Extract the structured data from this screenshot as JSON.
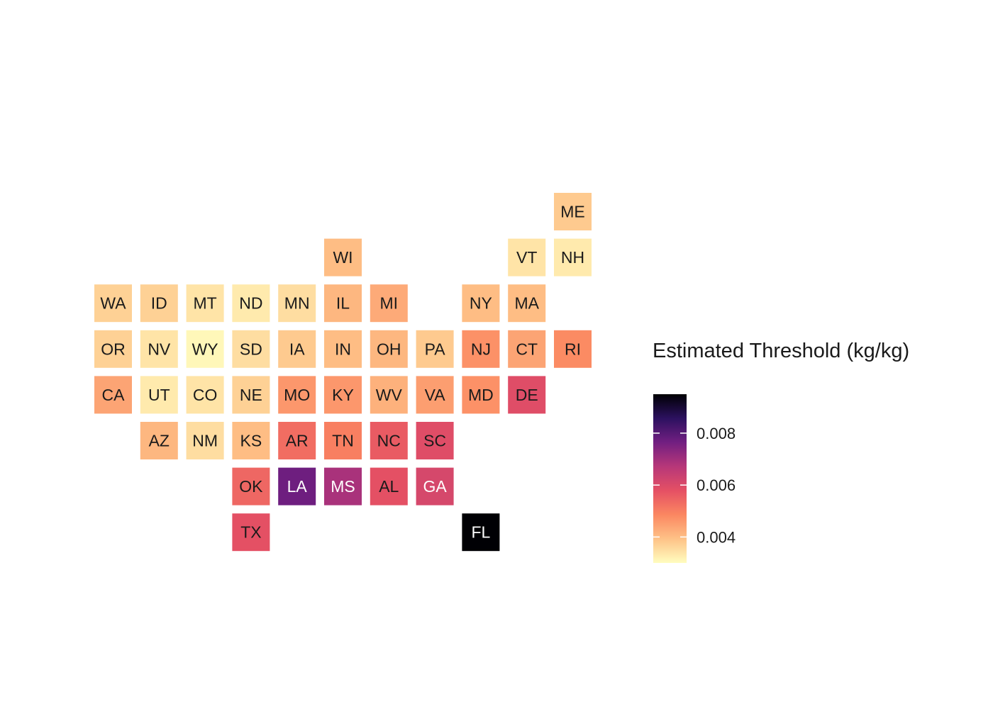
{
  "chart_data": {
    "type": "heatmap",
    "subtype": "us-state-tile-grid",
    "title": "",
    "legend": {
      "title": "Estimated Threshold (kg/kg)",
      "position": "right",
      "range": [
        0.003,
        0.0095
      ],
      "ticks": [
        {
          "value": 0.004,
          "label": "0.004"
        },
        {
          "value": 0.006,
          "label": "0.006"
        },
        {
          "value": 0.008,
          "label": "0.008"
        }
      ],
      "colormap": "magma-reversed",
      "color_stops": [
        "#fffdbf",
        "#fec287",
        "#fb8761",
        "#e55064",
        "#b73779",
        "#721f81",
        "#2c115f",
        "#000004"
      ]
    },
    "tiles": [
      {
        "state": "ME",
        "col": 10,
        "row": 0,
        "value": 0.0038
      },
      {
        "state": "WI",
        "col": 5,
        "row": 1,
        "value": 0.004
      },
      {
        "state": "VT",
        "col": 9,
        "row": 1,
        "value": 0.0034
      },
      {
        "state": "NH",
        "col": 10,
        "row": 1,
        "value": 0.0033
      },
      {
        "state": "WA",
        "col": 0,
        "row": 2,
        "value": 0.0037
      },
      {
        "state": "ID",
        "col": 1,
        "row": 2,
        "value": 0.0037
      },
      {
        "state": "MT",
        "col": 2,
        "row": 2,
        "value": 0.0034
      },
      {
        "state": "ND",
        "col": 3,
        "row": 2,
        "value": 0.0033
      },
      {
        "state": "MN",
        "col": 4,
        "row": 2,
        "value": 0.0035
      },
      {
        "state": "IL",
        "col": 5,
        "row": 2,
        "value": 0.0041
      },
      {
        "state": "MI",
        "col": 6,
        "row": 2,
        "value": 0.0043
      },
      {
        "state": "NY",
        "col": 8,
        "row": 2,
        "value": 0.004
      },
      {
        "state": "MA",
        "col": 9,
        "row": 2,
        "value": 0.004
      },
      {
        "state": "OR",
        "col": 0,
        "row": 3,
        "value": 0.0037
      },
      {
        "state": "NV",
        "col": 1,
        "row": 3,
        "value": 0.0034
      },
      {
        "state": "WY",
        "col": 2,
        "row": 3,
        "value": 0.0031
      },
      {
        "state": "SD",
        "col": 3,
        "row": 3,
        "value": 0.0035
      },
      {
        "state": "IA",
        "col": 4,
        "row": 3,
        "value": 0.0038
      },
      {
        "state": "IN",
        "col": 5,
        "row": 3,
        "value": 0.004
      },
      {
        "state": "OH",
        "col": 6,
        "row": 3,
        "value": 0.0041
      },
      {
        "state": "PA",
        "col": 7,
        "row": 3,
        "value": 0.0038
      },
      {
        "state": "NJ",
        "col": 8,
        "row": 3,
        "value": 0.0047
      },
      {
        "state": "CT",
        "col": 9,
        "row": 3,
        "value": 0.0044
      },
      {
        "state": "RI",
        "col": 10,
        "row": 3,
        "value": 0.0048
      },
      {
        "state": "CA",
        "col": 0,
        "row": 4,
        "value": 0.0044
      },
      {
        "state": "UT",
        "col": 1,
        "row": 4,
        "value": 0.0033
      },
      {
        "state": "CO",
        "col": 2,
        "row": 4,
        "value": 0.0034
      },
      {
        "state": "NE",
        "col": 3,
        "row": 4,
        "value": 0.0037
      },
      {
        "state": "MO",
        "col": 4,
        "row": 4,
        "value": 0.0046
      },
      {
        "state": "KY",
        "col": 5,
        "row": 4,
        "value": 0.0046
      },
      {
        "state": "WV",
        "col": 6,
        "row": 4,
        "value": 0.0042
      },
      {
        "state": "VA",
        "col": 7,
        "row": 4,
        "value": 0.0045
      },
      {
        "state": "MD",
        "col": 8,
        "row": 4,
        "value": 0.0047
      },
      {
        "state": "DE",
        "col": 9,
        "row": 4,
        "value": 0.0059
      },
      {
        "state": "AZ",
        "col": 1,
        "row": 5,
        "value": 0.0041
      },
      {
        "state": "NM",
        "col": 2,
        "row": 5,
        "value": 0.0035
      },
      {
        "state": "KS",
        "col": 3,
        "row": 5,
        "value": 0.004
      },
      {
        "state": "AR",
        "col": 4,
        "row": 5,
        "value": 0.0053
      },
      {
        "state": "TN",
        "col": 5,
        "row": 5,
        "value": 0.005
      },
      {
        "state": "NC",
        "col": 6,
        "row": 5,
        "value": 0.0056
      },
      {
        "state": "SC",
        "col": 7,
        "row": 5,
        "value": 0.0059
      },
      {
        "state": "OK",
        "col": 3,
        "row": 6,
        "value": 0.0054
      },
      {
        "state": "LA",
        "col": 4,
        "row": 6,
        "value": 0.0077
      },
      {
        "state": "MS",
        "col": 5,
        "row": 6,
        "value": 0.0069
      },
      {
        "state": "AL",
        "col": 6,
        "row": 6,
        "value": 0.0058
      },
      {
        "state": "GA",
        "col": 7,
        "row": 6,
        "value": 0.0061
      },
      {
        "state": "TX",
        "col": 3,
        "row": 7,
        "value": 0.0058
      },
      {
        "state": "FL",
        "col": 8,
        "row": 7,
        "value": 0.0095
      }
    ]
  }
}
